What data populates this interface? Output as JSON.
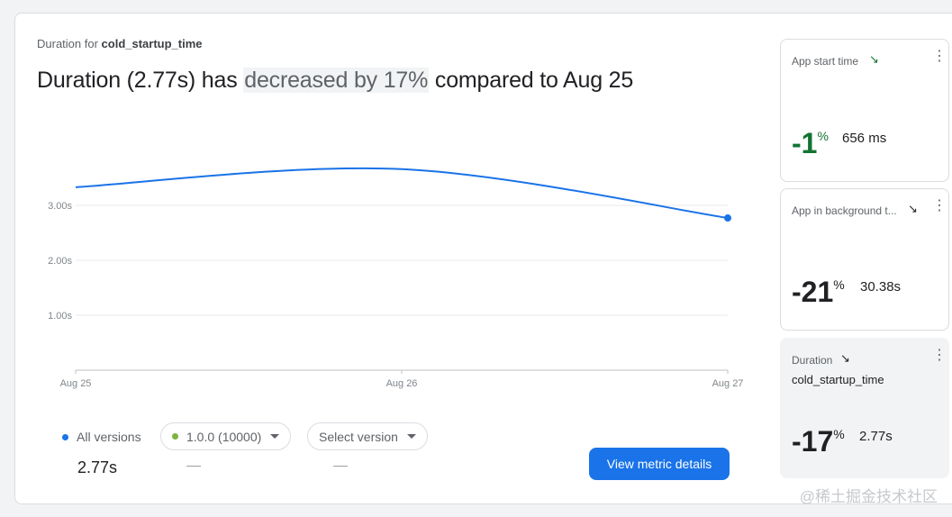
{
  "header": {
    "subtitle_prefix": "Duration for",
    "subtitle_metric": "cold_startup_time",
    "headline_pre": "Duration (2.77s) has",
    "headline_highlight": "decreased by 17%",
    "headline_post": "compared to Aug 25"
  },
  "chart_data": {
    "type": "line",
    "x": [
      "Aug 25",
      "Aug 26",
      "Aug 27"
    ],
    "series": [
      {
        "values": [
          3.33,
          3.66,
          2.77
        ],
        "color": "#1a73e8"
      }
    ],
    "yticks": [
      "3.00s",
      "2.00s",
      "1.00s"
    ],
    "ytick_values": [
      3,
      2,
      1
    ],
    "ylim": [
      0,
      4
    ],
    "grid": true
  },
  "legend": {
    "all_versions_label": "All versions",
    "all_versions_color": "#1a73e8",
    "all_versions_value": "2.77s",
    "version_chip_label": "1.0.0 (10000)",
    "version_chip_color": "#7cb342",
    "select_version_label": "Select version"
  },
  "actions": {
    "view_details_label": "View metric details"
  },
  "kpis": [
    {
      "name": "App start time",
      "sub": "",
      "change": "-1",
      "unit": "%",
      "value": "656 ms",
      "change_color": "#137333",
      "arrow": "↘",
      "arrow_color": "#137333"
    },
    {
      "name": "App in background t...",
      "sub": "",
      "change": "-21",
      "unit": "%",
      "value": "30.38s",
      "change_color": "#202124",
      "arrow": "↘",
      "arrow_color": "#202124"
    },
    {
      "name": "Duration",
      "sub": "cold_startup_time",
      "change": "-17",
      "unit": "%",
      "value": "2.77s",
      "change_color": "#202124",
      "arrow": "↘",
      "arrow_color": "#202124"
    }
  ],
  "watermark": "@稀土掘金技术社区"
}
